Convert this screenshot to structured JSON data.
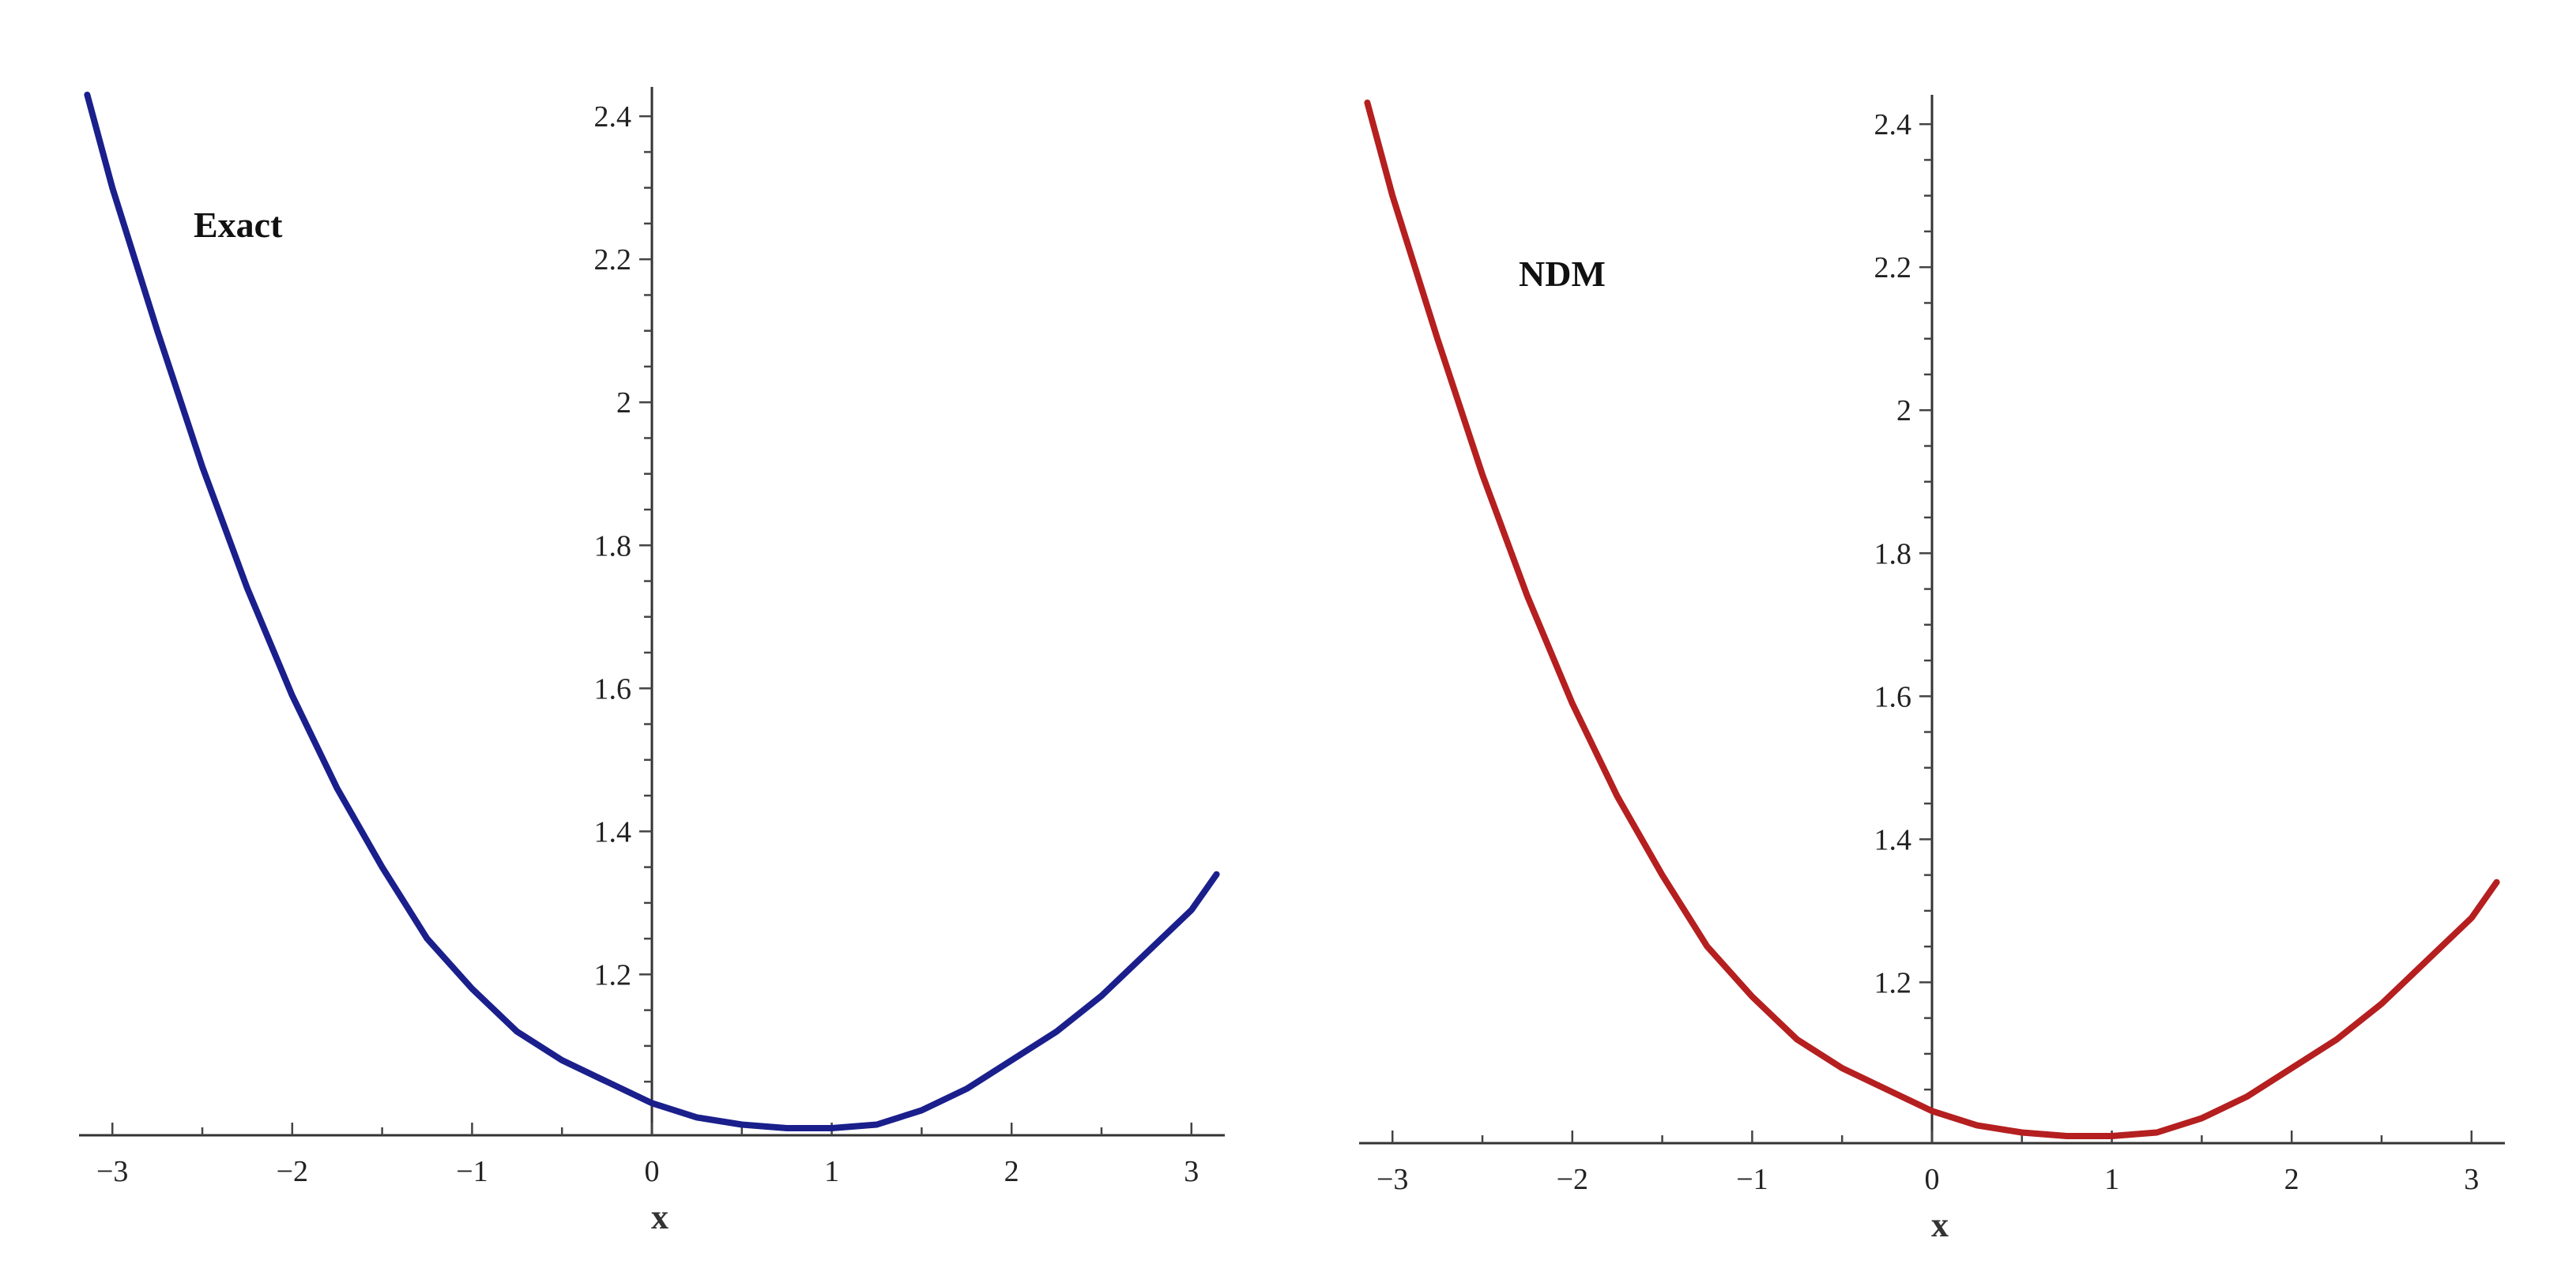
{
  "chart_data": [
    {
      "type": "line",
      "title": "",
      "label": "Exact",
      "xlabel": "x",
      "ylabel": "",
      "xlim": [
        -3.14159,
        3.14159
      ],
      "ylim": [
        0.985,
        2.43
      ],
      "xticks": [
        "-3",
        "-2",
        "-1",
        "0",
        "1",
        "2",
        "3"
      ],
      "yticks": [
        "1.2",
        "1.4",
        "1.6",
        "1.8",
        "2",
        "2.2",
        "2.4"
      ],
      "color": "#1a1f8c",
      "series": [
        {
          "x": [
            -3.14,
            -3.0,
            -2.75,
            -2.5,
            -2.25,
            -2.0,
            -1.75,
            -1.5,
            -1.25,
            -1.0,
            -0.75,
            -0.5,
            -0.25,
            0.0,
            0.25,
            0.5,
            0.75,
            1.0,
            1.25,
            1.5,
            1.75,
            2.0,
            2.25,
            2.5,
            2.75,
            3.0,
            3.14
          ],
          "y": [
            2.43,
            2.3,
            2.1,
            1.91,
            1.74,
            1.59,
            1.46,
            1.35,
            1.25,
            1.18,
            1.12,
            1.08,
            1.05,
            1.02,
            1.0,
            0.99,
            0.985,
            0.985,
            0.99,
            1.01,
            1.04,
            1.08,
            1.12,
            1.17,
            1.23,
            1.29,
            1.34
          ]
        }
      ]
    },
    {
      "type": "line",
      "title": "",
      "label": "NDM",
      "xlabel": "x",
      "ylabel": "",
      "xlim": [
        -3.14159,
        3.14159
      ],
      "ylim": [
        0.985,
        2.43
      ],
      "xticks": [
        "-3",
        "-2",
        "-1",
        "0",
        "1",
        "2",
        "3"
      ],
      "yticks": [
        "1.2",
        "1.4",
        "1.6",
        "1.8",
        "2",
        "2.2",
        "2.4"
      ],
      "color": "#b51f1f",
      "series": [
        {
          "x": [
            -3.14,
            -3.0,
            -2.75,
            -2.5,
            -2.25,
            -2.0,
            -1.75,
            -1.5,
            -1.25,
            -1.0,
            -0.75,
            -0.5,
            -0.25,
            0.0,
            0.25,
            0.5,
            0.75,
            1.0,
            1.25,
            1.5,
            1.75,
            2.0,
            2.25,
            2.5,
            2.75,
            3.0,
            3.14
          ],
          "y": [
            2.43,
            2.3,
            2.1,
            1.91,
            1.74,
            1.59,
            1.46,
            1.35,
            1.25,
            1.18,
            1.12,
            1.08,
            1.05,
            1.02,
            1.0,
            0.99,
            0.985,
            0.985,
            0.99,
            1.01,
            1.04,
            1.08,
            1.12,
            1.17,
            1.23,
            1.29,
            1.34
          ]
        }
      ]
    }
  ]
}
